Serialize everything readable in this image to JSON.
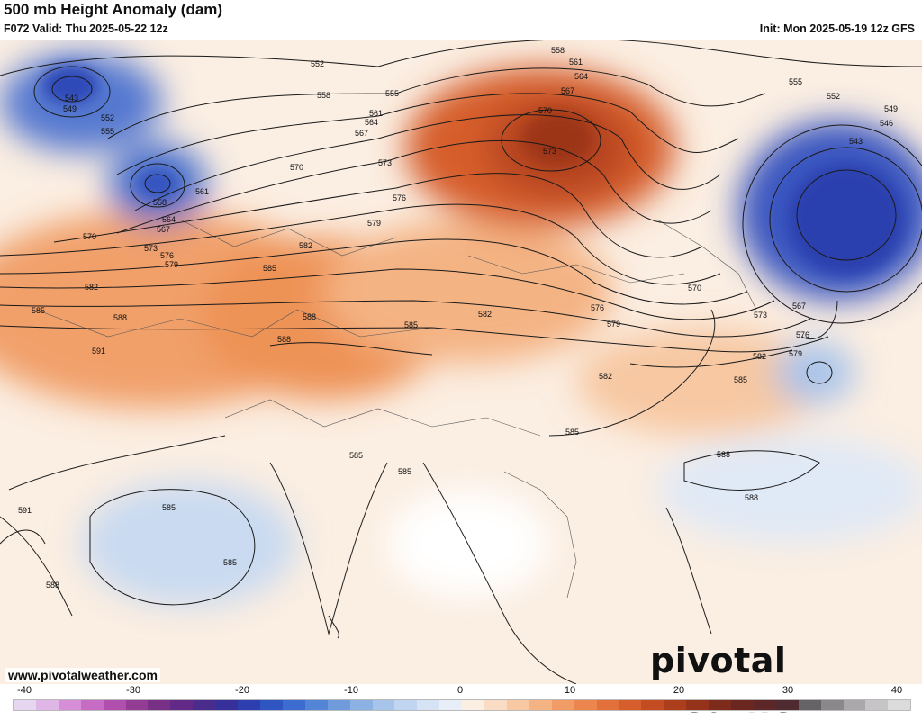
{
  "header": {
    "title": "500 mb Height Anomaly (dam)",
    "valid": "F072 Valid: Thu 2025-05-22 12z",
    "init": "Init: Mon 2025-05-19 12z GFS"
  },
  "footer": {
    "url": "www.pivotalweather.com",
    "logo": "pivotal weather"
  },
  "colorbar": {
    "ticks": [
      "-40",
      "-30",
      "-20",
      "-10",
      "0",
      "10",
      "20",
      "30",
      "40"
    ],
    "colors": [
      "#e6d6ef",
      "#dfb6e6",
      "#d68fd6",
      "#c66cc4",
      "#b04fae",
      "#923c94",
      "#782f86",
      "#622a86",
      "#4a2c8c",
      "#36309a",
      "#2d3fae",
      "#2f55c2",
      "#3c6ccf",
      "#5484d6",
      "#6f9bdc",
      "#8cb1e3",
      "#a7c4ea",
      "#c0d5f0",
      "#d6e3f5",
      "#e8eef8",
      "#fbeee2",
      "#f9dcc3",
      "#f7c8a2",
      "#f4b383",
      "#f19c66",
      "#ec864e",
      "#e2703a",
      "#d65d2c",
      "#c44c22",
      "#ad3e1c",
      "#943319",
      "#7d2b1a",
      "#6b271f",
      "#5c2726",
      "#4f2a30",
      "#666366",
      "#8a888a",
      "#aaa8aa",
      "#c6c4c6",
      "#dcdbdc"
    ]
  },
  "contour_labels": [
    "543",
    "549",
    "552",
    "555",
    "558",
    "561",
    "564",
    "567",
    "570",
    "573",
    "576",
    "579",
    "582",
    "585",
    "588",
    "591",
    "546"
  ]
}
